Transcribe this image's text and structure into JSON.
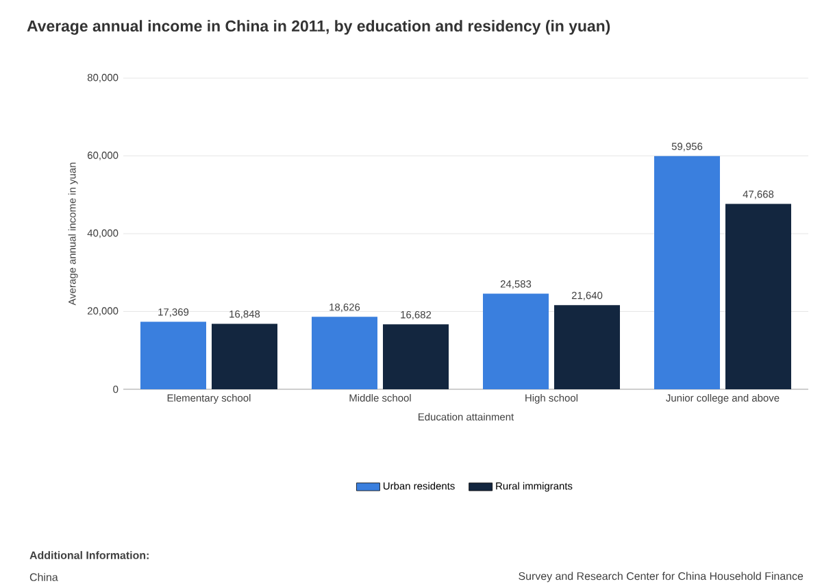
{
  "chart_data": {
    "type": "bar",
    "title": "Average annual income in China in 2011, by education and residency (in yuan)",
    "xlabel": "Education attainment",
    "ylabel": "Average annual income in yuan",
    "categories": [
      "Elementary school",
      "Middle school",
      "High school",
      "Junior college and above"
    ],
    "series": [
      {
        "name": "Urban residents",
        "color": "#3a7fde",
        "values": [
          17369,
          18626,
          24583,
          59956
        ],
        "value_labels": [
          "17,369",
          "18,626",
          "24,583",
          "59,956"
        ]
      },
      {
        "name": "Rural immigrants",
        "color": "#13263f",
        "values": [
          16848,
          16682,
          21640,
          47668
        ],
        "value_labels": [
          "16,848",
          "16,682",
          "21,640",
          "47,668"
        ]
      }
    ],
    "ylim": [
      0,
      80000
    ],
    "yticks": [
      0,
      {
        "value": 20000,
        "label": "20,000"
      },
      {
        "value": 40000,
        "label": "40,000"
      },
      {
        "value": 60000,
        "label": "60,000"
      },
      {
        "value": 80000,
        "label": "80,000"
      }
    ],
    "grid": "y",
    "legend": "bottom",
    "annotations": [
      "Additional Information:",
      "China",
      "Survey and Research Center for China Household Finance"
    ]
  }
}
